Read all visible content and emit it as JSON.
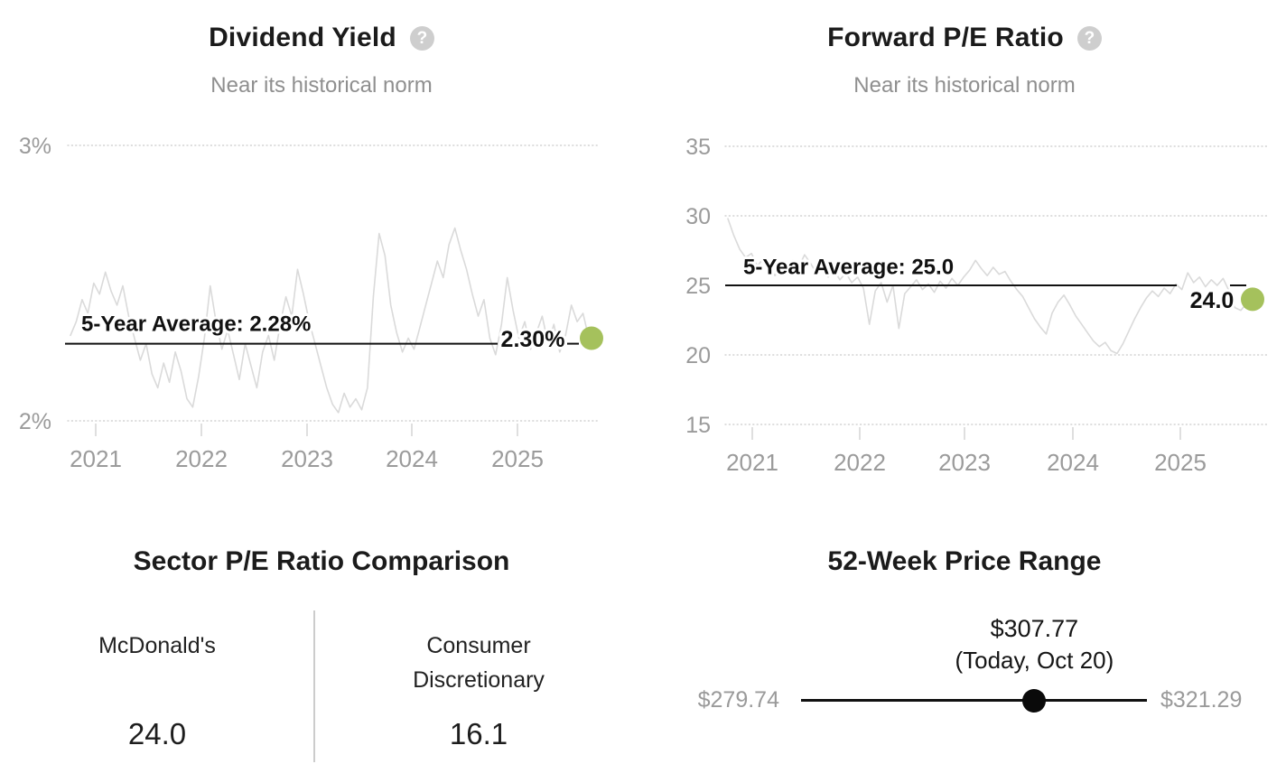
{
  "page": {
    "background": "#ffffff"
  },
  "panels": {
    "dividend_yield": {
      "title": "Dividend Yield",
      "help_icon": "question-mark-icon",
      "subtitle": "Near its historical norm"
    },
    "forward_pe": {
      "title": "Forward P/E Ratio",
      "help_icon": "question-mark-icon",
      "subtitle": "Near its historical norm"
    },
    "sector_comparison": {
      "title": "Sector P/E Ratio Comparison",
      "columns": [
        {
          "label": "McDonald's",
          "value": "24.0"
        },
        {
          "label": "Consumer Discretionary",
          "value": "16.1"
        }
      ]
    },
    "price_range": {
      "title": "52-Week Price Range",
      "current_label": "$307.77",
      "current_note": "(Today, Oct 20)",
      "low_label": "$279.74",
      "high_label": "$321.29",
      "low_value": 279.74,
      "high_value": 321.29,
      "current_value": 307.77
    }
  },
  "colors": {
    "series_line": "#dadada",
    "gridline": "#c9c9c9",
    "tick": "#d4d4d4",
    "axis_text": "#9b9b9b",
    "average_line": "#111111",
    "label_text": "#111111",
    "current_dot_green": "#a5c15c",
    "range_dot_black": "#0a0a0a"
  },
  "chart_data": [
    {
      "type": "line",
      "title": "Dividend Yield",
      "subtitle": "Near its historical norm",
      "x_range": [
        2020.8,
        2025.8
      ],
      "x_ticks": [
        "2021",
        "2022",
        "2023",
        "2024",
        "2025"
      ],
      "y_axis": {
        "ticks": [
          {
            "label": "3%",
            "value": 3,
            "grid": true
          },
          {
            "label": "2%",
            "value": 2,
            "grid": true
          }
        ]
      },
      "average": {
        "label": "5-Year Average: 2.28%",
        "value": 2.28
      },
      "current": {
        "label": "2.30%",
        "value": 2.3
      },
      "legend": "none",
      "values": [
        2.31,
        2.36,
        2.44,
        2.39,
        2.5,
        2.46,
        2.54,
        2.47,
        2.42,
        2.49,
        2.38,
        2.3,
        2.22,
        2.28,
        2.17,
        2.12,
        2.21,
        2.14,
        2.25,
        2.18,
        2.08,
        2.05,
        2.16,
        2.3,
        2.49,
        2.36,
        2.26,
        2.33,
        2.24,
        2.15,
        2.28,
        2.2,
        2.12,
        2.25,
        2.31,
        2.22,
        2.35,
        2.45,
        2.38,
        2.55,
        2.46,
        2.36,
        2.28,
        2.2,
        2.12,
        2.06,
        2.03,
        2.1,
        2.05,
        2.08,
        2.04,
        2.12,
        2.45,
        2.68,
        2.6,
        2.42,
        2.32,
        2.25,
        2.3,
        2.26,
        2.34,
        2.42,
        2.5,
        2.58,
        2.52,
        2.64,
        2.7,
        2.62,
        2.55,
        2.46,
        2.38,
        2.44,
        2.3,
        2.24,
        2.35,
        2.52,
        2.4,
        2.3,
        2.36,
        2.26,
        2.32,
        2.38,
        2.28,
        2.35,
        2.25,
        2.31,
        2.42,
        2.36,
        2.39,
        2.3
      ]
    },
    {
      "type": "line",
      "title": "Forward P/E Ratio",
      "subtitle": "Near its historical norm",
      "x_range": [
        2020.8,
        2025.8
      ],
      "x_ticks": [
        "2021",
        "2022",
        "2023",
        "2024",
        "2025"
      ],
      "y_axis": {
        "ticks": [
          {
            "label": "35",
            "value": 35,
            "grid": true
          },
          {
            "label": "30",
            "value": 30,
            "grid": true
          },
          {
            "label": "25",
            "value": 25,
            "grid": false
          },
          {
            "label": "20",
            "value": 20,
            "grid": true
          },
          {
            "label": "15",
            "value": 15,
            "grid": true
          }
        ]
      },
      "average": {
        "label": "5-Year Average: 25.0",
        "value": 25.0
      },
      "current": {
        "label": "24.0",
        "value": 24.0
      },
      "legend": "none",
      "values": [
        29.8,
        28.6,
        27.6,
        27.0,
        27.3,
        26.4,
        26.9,
        26.2,
        25.7,
        26.5,
        26.0,
        26.8,
        26.3,
        27.2,
        26.6,
        25.9,
        26.4,
        25.6,
        26.1,
        25.4,
        25.9,
        25.2,
        25.6,
        24.8,
        22.2,
        24.6,
        25.2,
        23.8,
        25.0,
        21.9,
        24.4,
        24.9,
        25.4,
        24.7,
        25.1,
        24.5,
        25.3,
        24.8,
        25.5,
        25.0,
        25.6,
        26.1,
        26.8,
        26.2,
        25.7,
        26.3,
        25.8,
        26.0,
        25.3,
        24.7,
        24.2,
        23.4,
        22.6,
        22.0,
        21.5,
        23.0,
        23.8,
        24.3,
        23.6,
        22.8,
        22.2,
        21.6,
        21.0,
        20.6,
        20.9,
        20.3,
        20.1,
        20.8,
        21.7,
        22.6,
        23.4,
        24.1,
        24.6,
        24.2,
        24.8,
        24.4,
        25.1,
        24.7,
        25.9,
        25.2,
        25.6,
        24.9,
        25.4,
        25.0,
        25.5,
        24.6,
        23.4,
        23.2,
        23.7,
        24.0
      ]
    },
    {
      "type": "table",
      "title": "Sector P/E Ratio Comparison",
      "categories": [
        "McDonald's",
        "Consumer Discretionary"
      ],
      "values": [
        24.0,
        16.1
      ]
    },
    {
      "type": "range",
      "title": "52-Week Price Range",
      "low": 279.74,
      "high": 321.29,
      "current": 307.77,
      "current_date_note": "(Today, Oct 20)"
    }
  ]
}
